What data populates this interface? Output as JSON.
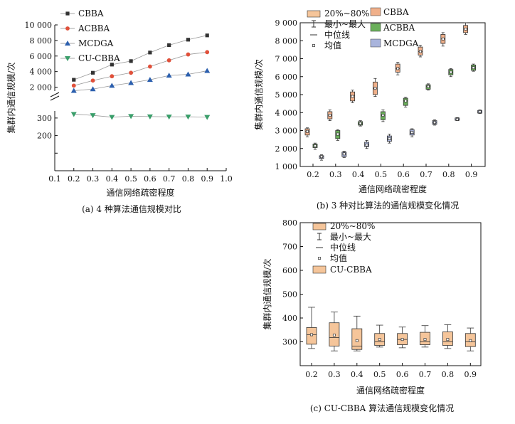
{
  "chart_data": [
    {
      "type": "line",
      "caption": "(a) 4 种算法通信规模对比",
      "xlabel": "通信网络疏密程度",
      "ylabel": "集群内通信规模/次",
      "xlim": [
        0.1,
        1.0
      ],
      "x_ticks": [
        "0.1",
        "0.2",
        "0.3",
        "0.4",
        "0.5",
        "0.6",
        "0.7",
        "0.8",
        "0.9",
        "1.0"
      ],
      "y_ticks_upper": [
        "2 000",
        "4 000",
        "6 000",
        "8 000",
        "10 000"
      ],
      "y_ticks_lower": [
        "200",
        "300"
      ],
      "y_ticks_lower_unlabeled": [
        "100",
        "0"
      ],
      "ylim_upper": [
        1500,
        10000
      ],
      "ylim_lower": [
        0,
        340
      ],
      "x": [
        0.2,
        0.3,
        0.4,
        0.5,
        0.6,
        0.7,
        0.8,
        0.9
      ],
      "series": [
        {
          "name": "CBBA",
          "color": "#333333",
          "marker": "square",
          "values": [
            2950,
            3850,
            4900,
            5350,
            6450,
            7400,
            8100,
            8650
          ]
        },
        {
          "name": "ACBBA",
          "color": "#e0503a",
          "marker": "circle",
          "values": [
            2200,
            2850,
            3400,
            3850,
            4650,
            5450,
            6200,
            6500
          ]
        },
        {
          "name": "MCDGA",
          "color": "#2b5fae",
          "marker": "triangle-up",
          "values": [
            1550,
            1750,
            2200,
            2550,
            2950,
            3500,
            3650,
            4100
          ]
        },
        {
          "name": "CU-CBBA",
          "color": "#3a9e6a",
          "marker": "triangle-down",
          "values": [
            322,
            315,
            305,
            310,
            308,
            307,
            307,
            305
          ]
        }
      ]
    },
    {
      "type": "box",
      "caption": "(b) 3 种对比算法的通信规模变化情况",
      "xlabel": "通信网络疏密程度",
      "ylabel": "集群内通信规模/次",
      "ylim": [
        1000,
        9000
      ],
      "x_ticks": [
        "0.2",
        "0.3",
        "0.4",
        "0.5",
        "0.6",
        "0.7",
        "0.8",
        "0.9"
      ],
      "y_ticks": [
        "1 000",
        "2 000",
        "3 000",
        "4 000",
        "5 000",
        "6 000",
        "7 000",
        "8 000",
        "9 000"
      ],
      "legend_left": [
        "20%~80%",
        "最小~最大",
        "中位线",
        "均值"
      ],
      "series": [
        {
          "name": "CBBA",
          "color": "#f0b08a",
          "boxes": [
            {
              "min": 2650,
              "q1": 2750,
              "median": 2950,
              "q3": 3100,
              "max": 3150,
              "mean": 2950
            },
            {
              "min": 3550,
              "q1": 3650,
              "median": 3850,
              "q3": 4050,
              "max": 4150,
              "mean": 3850
            },
            {
              "min": 4550,
              "q1": 4650,
              "median": 4950,
              "q3": 5150,
              "max": 5250,
              "mean": 4900
            },
            {
              "min": 4900,
              "q1": 5000,
              "median": 5350,
              "q3": 5700,
              "max": 5900,
              "mean": 5350
            },
            {
              "min": 6100,
              "q1": 6250,
              "median": 6450,
              "q3": 6700,
              "max": 6800,
              "mean": 6450
            },
            {
              "min": 7100,
              "q1": 7200,
              "median": 7400,
              "q3": 7650,
              "max": 7750,
              "mean": 7400
            },
            {
              "min": 7700,
              "q1": 7850,
              "median": 8100,
              "q3": 8350,
              "max": 8450,
              "mean": 8100
            },
            {
              "min": 8350,
              "q1": 8450,
              "median": 8650,
              "q3": 8850,
              "max": 9000,
              "mean": 8650
            }
          ]
        },
        {
          "name": "ACBBA",
          "color": "#6aaf5a",
          "boxes": [
            {
              "min": 1950,
              "q1": 2050,
              "median": 2150,
              "q3": 2250,
              "max": 2300,
              "mean": 2150
            },
            {
              "min": 2450,
              "q1": 2550,
              "median": 2750,
              "q3": 3000,
              "max": 3050,
              "mean": 2800
            },
            {
              "min": 3250,
              "q1": 3300,
              "median": 3400,
              "q3": 3500,
              "max": 3550,
              "mean": 3400
            },
            {
              "min": 3500,
              "q1": 3600,
              "median": 3850,
              "q3": 4050,
              "max": 4150,
              "mean": 3850
            },
            {
              "min": 4300,
              "q1": 4400,
              "median": 4650,
              "q3": 4800,
              "max": 4850,
              "mean": 4650
            },
            {
              "min": 5250,
              "q1": 5300,
              "median": 5450,
              "q3": 5550,
              "max": 5600,
              "mean": 5450
            },
            {
              "min": 6000,
              "q1": 6100,
              "median": 6250,
              "q3": 6400,
              "max": 6450,
              "mean": 6250
            },
            {
              "min": 6300,
              "q1": 6350,
              "median": 6500,
              "q3": 6650,
              "max": 6700,
              "mean": 6500
            }
          ]
        },
        {
          "name": "MCDGA",
          "color": "#a9b4dc",
          "boxes": [
            {
              "min": 1350,
              "q1": 1450,
              "median": 1550,
              "q3": 1600,
              "max": 1650,
              "mean": 1550
            },
            {
              "min": 1500,
              "q1": 1550,
              "median": 1700,
              "q3": 1800,
              "max": 1850,
              "mean": 1700
            },
            {
              "min": 2000,
              "q1": 2100,
              "median": 2250,
              "q3": 2350,
              "max": 2450,
              "mean": 2200
            },
            {
              "min": 2300,
              "q1": 2400,
              "median": 2500,
              "q3": 2700,
              "max": 2800,
              "mean": 2550
            },
            {
              "min": 2650,
              "q1": 2750,
              "median": 2850,
              "q3": 3050,
              "max": 3100,
              "mean": 2900
            },
            {
              "min": 3300,
              "q1": 3350,
              "median": 3450,
              "q3": 3550,
              "max": 3600,
              "mean": 3450
            },
            {
              "min": 3550,
              "q1": 3570,
              "median": 3620,
              "q3": 3700,
              "max": 3720,
              "mean": 3620
            },
            {
              "min": 3950,
              "q1": 3970,
              "median": 4050,
              "q3": 4120,
              "max": 4150,
              "mean": 4050
            }
          ]
        }
      ]
    },
    {
      "type": "box",
      "caption": "(c) CU-CBBA 算法通信规模变化情况",
      "xlabel": "通信网络疏密程度",
      "ylabel": "集群内通信规模/次",
      "ylim": [
        200,
        800
      ],
      "x_ticks": [
        "0.2",
        "0.3",
        "0.4",
        "0.5",
        "0.6",
        "0.7",
        "0.8",
        "0.9"
      ],
      "y_ticks": [
        "300",
        "400",
        "500",
        "600",
        "700",
        "800"
      ],
      "legend": [
        "20%~80%",
        "最小~最大",
        "中位线",
        "均值",
        "CU-CBBA"
      ],
      "series": [
        {
          "name": "CU-CBBA",
          "color": "#f5c59a",
          "boxes": [
            {
              "min": 272,
              "q1": 290,
              "median": 330,
              "q3": 360,
              "max": 445,
              "mean": 330
            },
            {
              "min": 262,
              "q1": 282,
              "median": 318,
              "q3": 380,
              "max": 425,
              "mean": 328
            },
            {
              "min": 262,
              "q1": 268,
              "median": 282,
              "q3": 355,
              "max": 408,
              "mean": 305
            },
            {
              "min": 278,
              "q1": 285,
              "median": 300,
              "q3": 335,
              "max": 370,
              "mean": 310
            },
            {
              "min": 275,
              "q1": 288,
              "median": 310,
              "q3": 335,
              "max": 362,
              "mean": 310
            },
            {
              "min": 278,
              "q1": 288,
              "median": 300,
              "q3": 340,
              "max": 368,
              "mean": 310
            },
            {
              "min": 272,
              "q1": 285,
              "median": 300,
              "q3": 342,
              "max": 372,
              "mean": 310
            },
            {
              "min": 262,
              "q1": 280,
              "median": 300,
              "q3": 335,
              "max": 358,
              "mean": 305
            }
          ]
        }
      ]
    }
  ]
}
